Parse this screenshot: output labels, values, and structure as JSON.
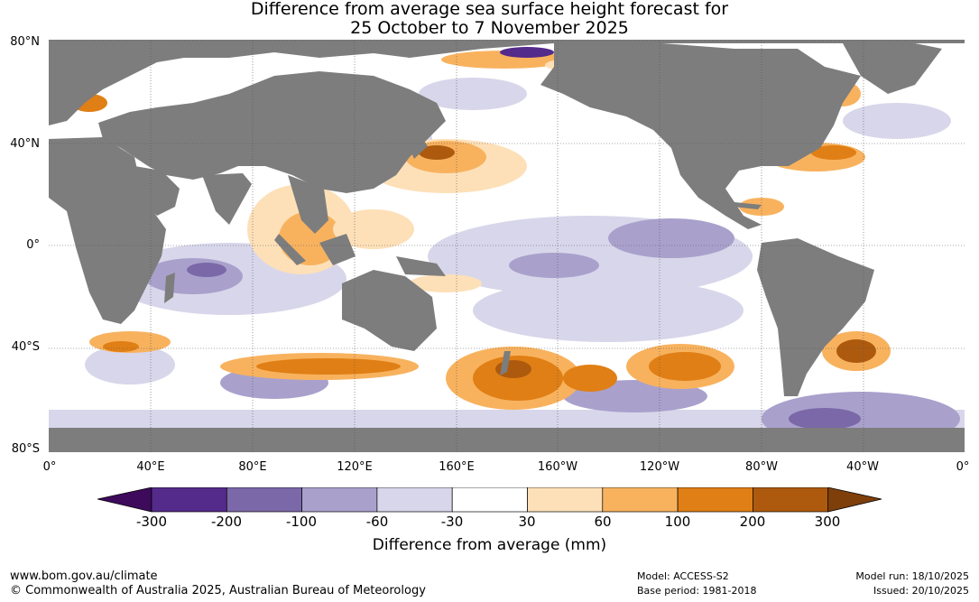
{
  "title": {
    "line1": "Difference from average sea surface height forecast for",
    "line2": "25 October to 7 November 2025"
  },
  "axes": {
    "lat_labels": [
      "80°N",
      "40°N",
      "0°",
      "40°S",
      "80°S"
    ],
    "lon_labels": [
      "0°",
      "40°E",
      "80°E",
      "120°E",
      "160°E",
      "160°W",
      "120°W",
      "80°W",
      "40°W",
      "0°"
    ]
  },
  "colorbar": {
    "labels": [
      "-300",
      "-200",
      "-100",
      "-60",
      "-30",
      "30",
      "60",
      "100",
      "200",
      "300"
    ],
    "colors": [
      "#3d0a5c",
      "#542a8a",
      "#7b68a8",
      "#a9a1cc",
      "#d8d6ea",
      "#ffffff",
      "#fde0b8",
      "#f8b25e",
      "#e07f15",
      "#ad5a0e",
      "#7e3f0b"
    ],
    "title": "Difference from average (mm)"
  },
  "map_colors": {
    "land": "#7d7d7d",
    "ocean_neutral": "#ffffff"
  },
  "footer": {
    "url": "www.bom.gov.au/climate",
    "copyright": "© Commonwealth of Australia 2025, Australian Bureau of Meteorology",
    "model": "Model: ACCESS-S2",
    "base_period": "Base period: 1981-2018",
    "model_run": "Model run: 18/10/2025",
    "issued": "Issued: 20/10/2025"
  }
}
